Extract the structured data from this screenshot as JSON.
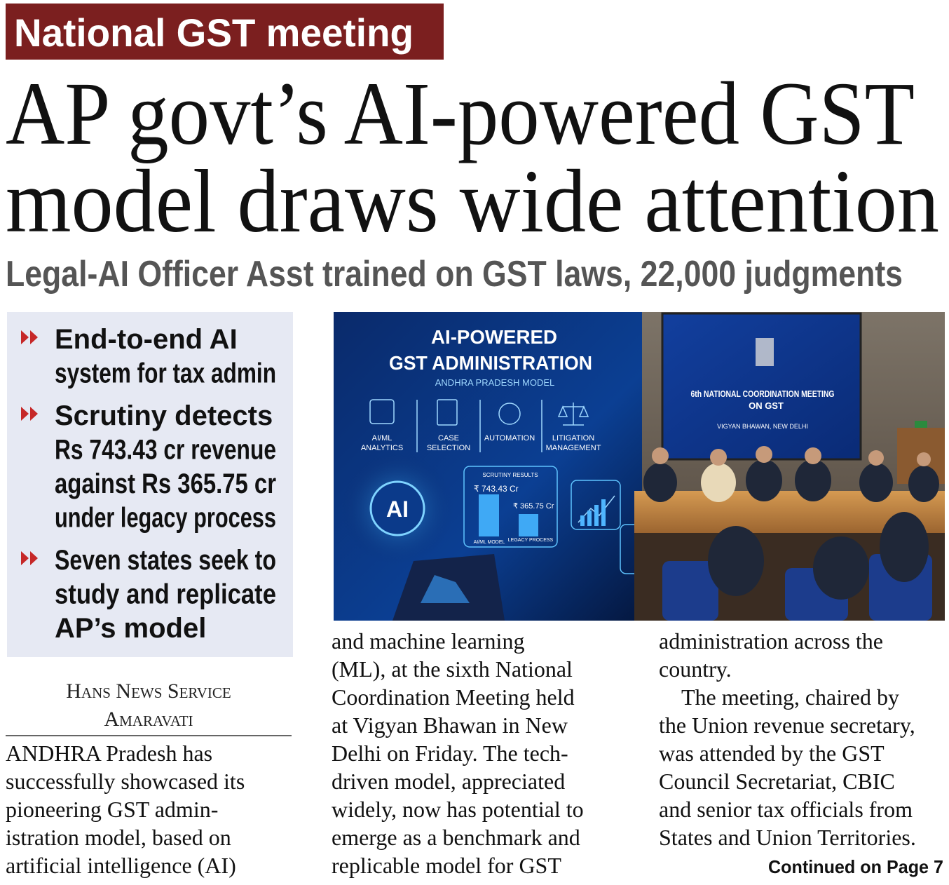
{
  "kicker": "National GST meeting",
  "headline": [
    "AP govt’s AI-powered GST",
    "model draws wide attention"
  ],
  "subheadline": "Legal-AI Officer Asst trained on GST laws, 22,000 judgments",
  "highlights": [
    [
      "End-to-end AI",
      "system for tax admin"
    ],
    [
      "Scrutiny detects",
      "Rs 743.43 cr revenue",
      "against Rs 365.75 cr",
      "under legacy process"
    ],
    [
      "Seven states seek to",
      "study and replicate",
      "AP’s model"
    ]
  ],
  "byline": {
    "agency": "Hans News Service",
    "place": "Amaravati"
  },
  "columns": [
    [
      "ANDHRA Pradesh has",
      "successfully showcased its",
      "pioneering GST admin-",
      "istration model, based on",
      "artificial intelligence (AI)"
    ],
    [
      "and machine learning",
      "(ML), at the sixth National",
      "Coordination Meeting held",
      "at Vigyan Bhawan in New",
      "Delhi on Friday. The tech-",
      "driven model, appreciated",
      "widely, now has potential to",
      "emerge as a benchmark and",
      "replicable model for GST"
    ],
    [
      "administration across the",
      "country.",
      "The meeting, chaired by",
      "the Union revenue secretary,",
      "was attended by the GST",
      "Council Secretariat, CBIC",
      "and senior tax officials from",
      "States and Union Territories."
    ]
  ],
  "continued": "Continued on Page 7",
  "photo": {
    "graphic": {
      "title": [
        "AI-POWERED",
        "GST ADMINISTRATION"
      ],
      "subtitle": "ANDHRA PRADESH MODEL",
      "features": [
        [
          "AI/ML",
          "ANALYTICS"
        ],
        [
          "CASE",
          "SELECTION"
        ],
        [
          "AUTOMATION"
        ],
        [
          "LITIGATION",
          "MANAGEMENT"
        ]
      ],
      "results_title": "SCRUTINY RESULTS",
      "results": [
        "₹ 743.43 Cr",
        "₹ 365.75 Cr"
      ],
      "results_labels": [
        "AI/ML MODEL",
        "LEGACY PROCESS"
      ],
      "badge": "AI"
    },
    "screen": [
      "6th NATIONAL COORDINATION MEETING",
      "ON GST",
      "VIGYAN BHAWAN, NEW DELHI"
    ]
  }
}
